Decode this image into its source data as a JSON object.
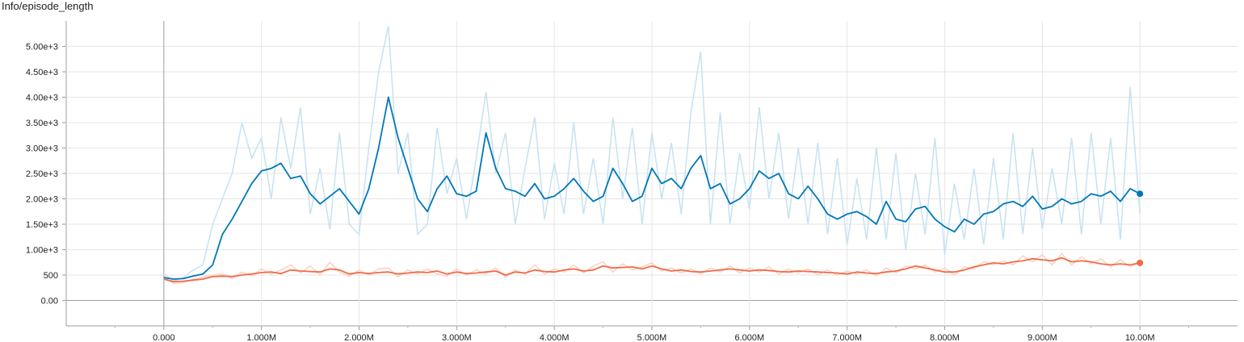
{
  "title": "Info/episode_length",
  "chart_data": {
    "type": "line",
    "x_ticks": [
      0,
      1000000,
      2000000,
      3000000,
      4000000,
      5000000,
      6000000,
      7000000,
      8000000,
      9000000,
      10000000
    ],
    "x_tick_labels": [
      "0.000",
      "1.000M",
      "2.000M",
      "3.000M",
      "4.000M",
      "5.000M",
      "6.000M",
      "7.000M",
      "8.000M",
      "9.000M",
      "10.00M"
    ],
    "y_ticks": [
      0,
      500,
      1000,
      1500,
      2000,
      2500,
      3000,
      3500,
      4000,
      4500,
      5000
    ],
    "y_tick_labels": [
      "0.00",
      "500",
      "1.00e+3",
      "1.50e+3",
      "2.00e+3",
      "2.50e+3",
      "3.00e+3",
      "3.50e+3",
      "4.00e+3",
      "4.50e+3",
      "5.00e+3"
    ],
    "xlim": [
      -1000000,
      11000000
    ],
    "ylim": [
      -500,
      5500
    ],
    "grid": true,
    "series": [
      {
        "color": "#0077bb",
        "raw_color": "#c6e2f0",
        "x": [
          0,
          100000,
          200000,
          300000,
          400000,
          500000,
          600000,
          700000,
          800000,
          900000,
          1000000,
          1100000,
          1200000,
          1300000,
          1400000,
          1500000,
          1600000,
          1700000,
          1800000,
          1900000,
          2000000,
          2100000,
          2200000,
          2300000,
          2400000,
          2500000,
          2600000,
          2700000,
          2800000,
          2900000,
          3000000,
          3100000,
          3200000,
          3300000,
          3400000,
          3500000,
          3600000,
          3700000,
          3800000,
          3900000,
          4000000,
          4100000,
          4200000,
          4300000,
          4400000,
          4500000,
          4600000,
          4700000,
          4800000,
          4900000,
          5000000,
          5100000,
          5200000,
          5300000,
          5400000,
          5500000,
          5600000,
          5700000,
          5800000,
          5900000,
          6000000,
          6100000,
          6200000,
          6300000,
          6400000,
          6500000,
          6600000,
          6700000,
          6800000,
          6900000,
          7000000,
          7100000,
          7200000,
          7300000,
          7400000,
          7500000,
          7600000,
          7700000,
          7800000,
          7900000,
          8000000,
          8100000,
          8200000,
          8300000,
          8400000,
          8500000,
          8600000,
          8700000,
          8800000,
          8900000,
          9000000,
          9100000,
          9200000,
          9300000,
          9400000,
          9500000,
          9600000,
          9700000,
          9800000,
          9900000,
          10000000
        ],
        "values": [
          450,
          420,
          430,
          480,
          520,
          700,
          1300,
          1600,
          1950,
          2300,
          2550,
          2600,
          2700,
          2400,
          2450,
          2100,
          1900,
          2050,
          2200,
          1950,
          1700,
          2200,
          3000,
          4000,
          3200,
          2600,
          2000,
          1750,
          2200,
          2450,
          2100,
          2050,
          2150,
          3300,
          2600,
          2200,
          2150,
          2050,
          2300,
          2000,
          2050,
          2200,
          2400,
          2150,
          1950,
          2050,
          2600,
          2300,
          1950,
          2050,
          2600,
          2300,
          2400,
          2200,
          2600,
          2850,
          2200,
          2300,
          1900,
          2000,
          2200,
          2550,
          2400,
          2500,
          2100,
          2000,
          2250,
          2000,
          1700,
          1600,
          1700,
          1750,
          1650,
          1500,
          1950,
          1600,
          1550,
          1800,
          1850,
          1600,
          1450,
          1350,
          1600,
          1500,
          1700,
          1750,
          1900,
          1950,
          1850,
          2050,
          1800,
          1850,
          2000,
          1900,
          1950,
          2100,
          2050,
          2150,
          1950,
          2200,
          2100
        ],
        "raw_values": [
          520,
          380,
          450,
          600,
          700,
          1500,
          2000,
          2500,
          3500,
          2800,
          3200,
          2000,
          3600,
          2600,
          3800,
          1700,
          2600,
          1400,
          3300,
          1500,
          1300,
          3000,
          4500,
          5400,
          2500,
          3300,
          1300,
          1500,
          3400,
          2100,
          2800,
          1600,
          2800,
          4100,
          2500,
          3300,
          1500,
          2600,
          3600,
          1600,
          2700,
          1700,
          3500,
          1700,
          2800,
          1500,
          3600,
          2000,
          3400,
          1500,
          3300,
          2000,
          3100,
          1700,
          3700,
          4900,
          1500,
          3700,
          1500,
          2900,
          1800,
          3800,
          2000,
          3300,
          1600,
          3000,
          1500,
          3100,
          1300,
          2800,
          1100,
          2400,
          1200,
          3000,
          1200,
          2900,
          1000,
          2500,
          1300,
          3200,
          900,
          2300,
          1200,
          2600,
          1100,
          2800,
          1200,
          3300,
          1300,
          3000,
          1400,
          2600,
          1500,
          3200,
          1300,
          3300,
          1500,
          3200,
          1200,
          4200,
          1700
        ]
      },
      {
        "color": "#f26a48",
        "raw_color": "#fcd1c3",
        "x": [
          0,
          100000,
          200000,
          300000,
          400000,
          500000,
          600000,
          700000,
          800000,
          900000,
          1000000,
          1100000,
          1200000,
          1300000,
          1400000,
          1500000,
          1600000,
          1700000,
          1800000,
          1900000,
          2000000,
          2100000,
          2200000,
          2300000,
          2400000,
          2500000,
          2600000,
          2700000,
          2800000,
          2900000,
          3000000,
          3100000,
          3200000,
          3300000,
          3400000,
          3500000,
          3600000,
          3700000,
          3800000,
          3900000,
          4000000,
          4100000,
          4200000,
          4300000,
          4400000,
          4500000,
          4600000,
          4700000,
          4800000,
          4900000,
          5000000,
          5100000,
          5200000,
          5300000,
          5400000,
          5500000,
          5600000,
          5700000,
          5800000,
          5900000,
          6000000,
          6100000,
          6200000,
          6300000,
          6400000,
          6500000,
          6600000,
          6700000,
          6800000,
          6900000,
          7000000,
          7100000,
          7200000,
          7300000,
          7400000,
          7500000,
          7600000,
          7700000,
          7800000,
          7900000,
          8000000,
          8100000,
          8200000,
          8300000,
          8400000,
          8500000,
          8600000,
          8700000,
          8800000,
          8900000,
          9000000,
          9100000,
          9200000,
          9300000,
          9400000,
          9500000,
          9600000,
          9700000,
          9800000,
          9900000,
          10000000
        ],
        "values": [
          420,
          370,
          380,
          400,
          420,
          470,
          480,
          470,
          500,
          520,
          550,
          560,
          530,
          600,
          580,
          570,
          560,
          620,
          600,
          520,
          550,
          530,
          550,
          560,
          520,
          540,
          560,
          550,
          580,
          520,
          560,
          530,
          540,
          560,
          580,
          500,
          560,
          540,
          600,
          570,
          560,
          600,
          620,
          580,
          600,
          680,
          640,
          650,
          660,
          620,
          680,
          620,
          580,
          600,
          570,
          560,
          580,
          600,
          620,
          600,
          580,
          600,
          590,
          570,
          560,
          580,
          570,
          560,
          550,
          540,
          520,
          560,
          540,
          530,
          560,
          580,
          620,
          680,
          640,
          600,
          560,
          560,
          600,
          660,
          700,
          740,
          720,
          760,
          780,
          820,
          800,
          780,
          840,
          760,
          780,
          760,
          720,
          700,
          720,
          700,
          740
        ],
        "raw_values": [
          480,
          330,
          350,
          420,
          460,
          500,
          520,
          430,
          560,
          480,
          620,
          520,
          600,
          700,
          540,
          680,
          500,
          750,
          560,
          480,
          600,
          500,
          620,
          640,
          460,
          600,
          520,
          620,
          520,
          480,
          620,
          500,
          600,
          520,
          640,
          460,
          600,
          520,
          700,
          520,
          620,
          560,
          700,
          540,
          680,
          760,
          560,
          720,
          600,
          660,
          740,
          580,
          640,
          540,
          620,
          520,
          640,
          560,
          680,
          540,
          640,
          560,
          660,
          520,
          620,
          540,
          620,
          500,
          600,
          500,
          580,
          520,
          600,
          480,
          640,
          540,
          680,
          620,
          700,
          560,
          640,
          500,
          660,
          620,
          760,
          700,
          780,
          700,
          880,
          760,
          900,
          700,
          920,
          700,
          860,
          720,
          820,
          660,
          800,
          660,
          760
        ]
      }
    ]
  }
}
